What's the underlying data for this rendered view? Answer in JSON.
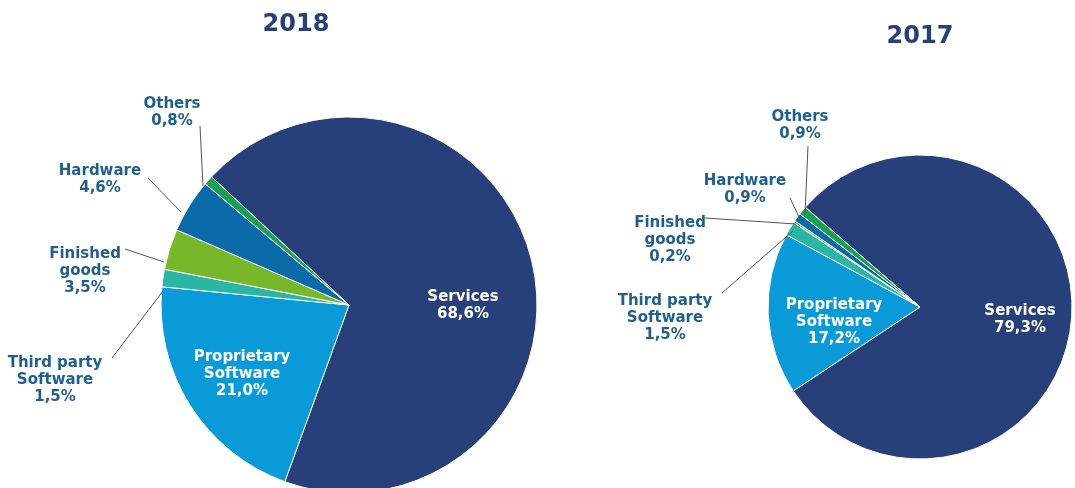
{
  "chart_data": [
    {
      "type": "pie",
      "title": "2018",
      "categories": [
        "Services",
        "Proprietary Software",
        "Third party Software",
        "Finished goods",
        "Hardware",
        "Others"
      ],
      "values": [
        68.6,
        21.0,
        1.5,
        3.5,
        4.6,
        0.8
      ],
      "colors": [
        "#27407a",
        "#0a9ad8",
        "#2ab5a5",
        "#76b82a",
        "#0b6aa8",
        "#1aa050"
      ],
      "value_labels": [
        "68,6%",
        "21,0%",
        "1,5%",
        "3,5%",
        "4,6%",
        "0,8%"
      ]
    },
    {
      "type": "pie",
      "title": "2017",
      "categories": [
        "Services",
        "Proprietary Software",
        "Third party Software",
        "Finished goods",
        "Hardware",
        "Others"
      ],
      "values": [
        79.3,
        17.2,
        1.5,
        0.2,
        0.9,
        0.9
      ],
      "colors": [
        "#27407a",
        "#0a9ad8",
        "#2ab5a5",
        "#76b82a",
        "#0b6aa8",
        "#1aa050"
      ],
      "value_labels": [
        "79,3%",
        "17,2%",
        "1,5%",
        "0,2%",
        "0,9%",
        "0,9%"
      ]
    }
  ]
}
